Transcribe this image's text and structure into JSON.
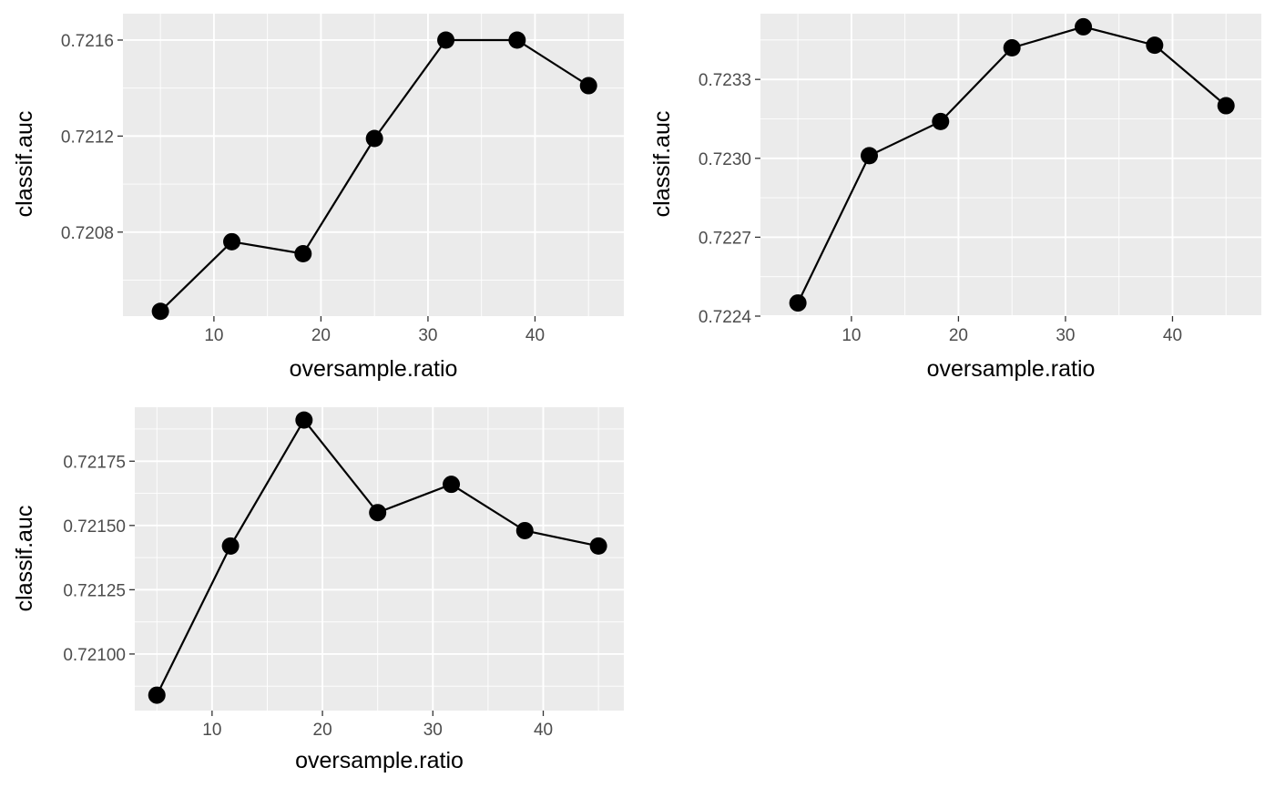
{
  "chart_data": [
    {
      "type": "line",
      "xlabel": "oversample.ratio",
      "ylabel": "classif.auc",
      "x": [
        5,
        11.67,
        18.33,
        25,
        31.67,
        38.33,
        45
      ],
      "series": [
        {
          "values": [
            0.72047,
            0.72076,
            0.72071,
            0.72119,
            0.7216,
            0.7216,
            0.72141
          ]
        }
      ],
      "xlim": [
        1.5,
        48.3
      ],
      "ylim": [
        0.72045,
        0.72171
      ],
      "x_ticks": [
        10,
        20,
        30,
        40
      ],
      "x_tick_labels": [
        "10",
        "20",
        "30",
        "40"
      ],
      "y_ticks": [
        0.7208,
        0.7212,
        0.7216
      ],
      "y_tick_labels": [
        "0.7208",
        "0.7212",
        "0.7216"
      ],
      "grid": true,
      "markers": "filled-circle",
      "colors": {
        "panel": "#ebebeb",
        "grid": "#ffffff",
        "line": "#000000",
        "marker": "#000000",
        "tick_text": "#4d4d4d",
        "tick_mark": "#333333"
      }
    },
    {
      "type": "line",
      "xlabel": "oversample.ratio",
      "ylabel": "classif.auc",
      "x": [
        5,
        11.67,
        18.33,
        25,
        31.67,
        38.33,
        45
      ],
      "series": [
        {
          "values": [
            0.72245,
            0.72301,
            0.72314,
            0.72342,
            0.7235,
            0.72343,
            0.7232
          ]
        }
      ],
      "xlim": [
        1.5,
        48.3
      ],
      "ylim": [
        0.7224,
        0.72355
      ],
      "x_ticks": [
        10,
        20,
        30,
        40
      ],
      "x_tick_labels": [
        "10",
        "20",
        "30",
        "40"
      ],
      "y_ticks": [
        0.7224,
        0.7227,
        0.723,
        0.7233
      ],
      "y_tick_labels": [
        "0.7224",
        "0.7227",
        "0.7230",
        "0.7233"
      ],
      "grid": true,
      "markers": "filled-circle",
      "colors": {
        "panel": "#ebebeb",
        "grid": "#ffffff",
        "line": "#000000",
        "marker": "#000000",
        "tick_text": "#4d4d4d",
        "tick_mark": "#333333"
      }
    },
    {
      "type": "line",
      "xlabel": "oversample.ratio",
      "ylabel": "classif.auc",
      "x": [
        5,
        11.67,
        18.33,
        25,
        31.67,
        38.33,
        45
      ],
      "series": [
        {
          "values": [
            0.72084,
            0.72142,
            0.72191,
            0.72155,
            0.72166,
            0.72148,
            0.72142
          ]
        }
      ],
      "xlim": [
        3.0,
        47.3
      ],
      "ylim": [
        0.72078,
        0.72196
      ],
      "x_ticks": [
        10,
        20,
        30,
        40
      ],
      "x_tick_labels": [
        "10",
        "20",
        "30",
        "40"
      ],
      "y_ticks": [
        0.721,
        0.72125,
        0.7215,
        0.72175
      ],
      "y_tick_labels": [
        "0.72100",
        "0.72125",
        "0.72150",
        "0.72175"
      ],
      "grid": true,
      "markers": "filled-circle",
      "colors": {
        "panel": "#ebebeb",
        "grid": "#ffffff",
        "line": "#000000",
        "marker": "#000000",
        "tick_text": "#4d4d4d",
        "tick_mark": "#333333"
      }
    }
  ]
}
